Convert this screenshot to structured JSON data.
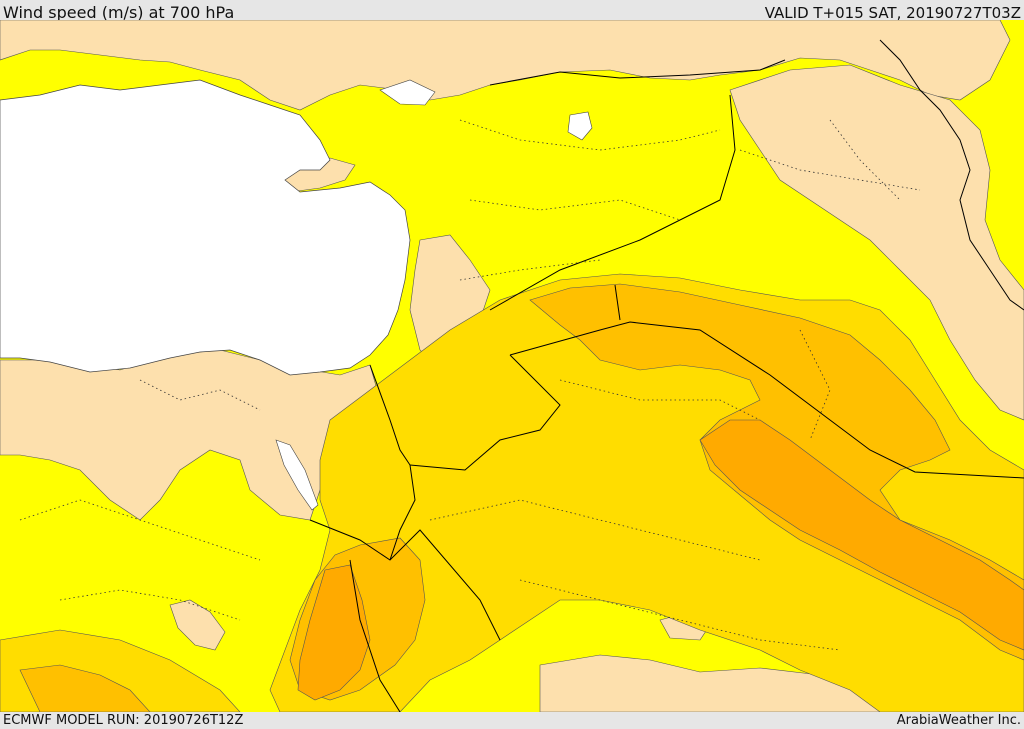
{
  "header": {
    "title": "Wind speed (m/s) at 700 hPa",
    "valid_time": "VALID T+015 SAT, 20190727T03Z"
  },
  "footer": {
    "model_run": "ECMWF MODEL RUN: 20190726T12Z",
    "credit": "ArabiaWeather Inc."
  },
  "colors": {
    "sea": "#ffffff",
    "low_wind": "#fde0ad",
    "yellow": "#ffff00",
    "gold": "#ffdd00",
    "amber": "#ffc000",
    "orange": "#ffaa00",
    "border": "#000000",
    "frame": "#e6e6e6"
  }
}
